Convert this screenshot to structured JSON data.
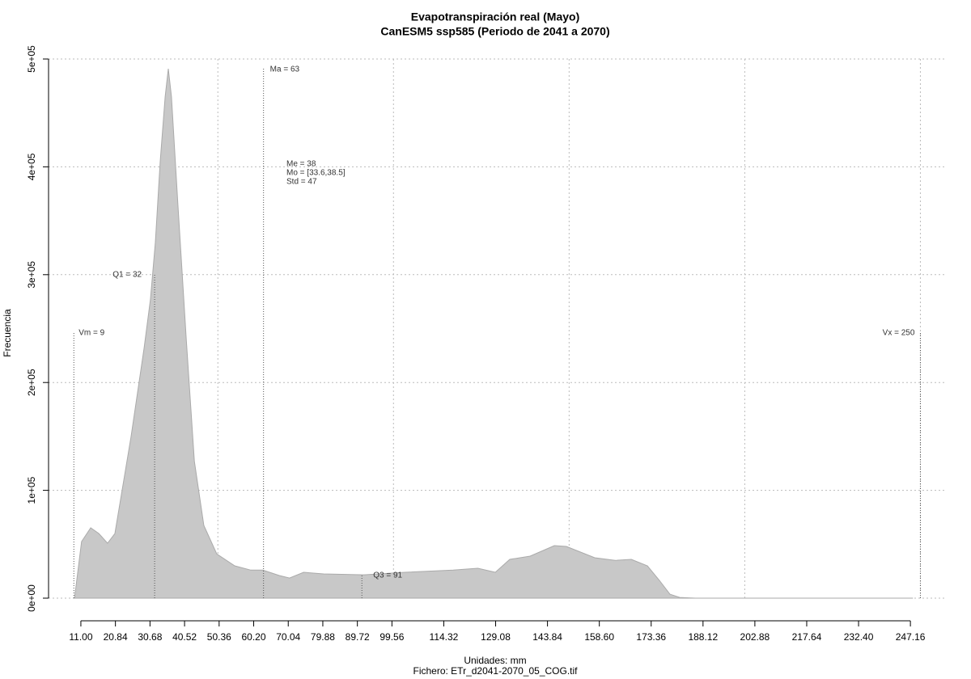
{
  "chart_data": {
    "type": "area",
    "title": "Evapotranspiración real (Mayo)",
    "subtitle": "CanESM5 ssp585 (Periodo de 2041 a 2070)",
    "x_label": "Unidades: mm",
    "caption": "Fichero: ETr_d2041-2070_05_COG.tif",
    "y_label": "Frecuencia",
    "color": "#c8c8c8",
    "x": [
      9.2,
      11.2,
      13.8,
      16.1,
      18.6,
      20.7,
      23.0,
      25.3,
      29.0,
      30.8,
      32.2,
      33.6,
      35.0,
      35.9,
      36.8,
      38.6,
      41.0,
      43.3,
      46.0,
      49.7,
      54.8,
      59.4,
      62.8,
      67.5,
      70.4,
      74.4,
      80.1,
      91.6,
      103.2,
      117.0,
      124.0,
      129.0,
      133.1,
      138.9,
      145.8,
      149.2,
      157.3,
      163.1,
      167.7,
      172.3,
      175.7,
      178.7,
      181.5,
      186.0,
      247.9
    ],
    "values": [
      0,
      52500,
      65200,
      60000,
      51000,
      60000,
      105000,
      150000,
      232000,
      277000,
      330000,
      405000,
      465000,
      491000,
      465000,
      367000,
      240000,
      127000,
      67500,
      41000,
      30000,
      26000,
      26000,
      21000,
      18700,
      24000,
      22500,
      21700,
      24000,
      26000,
      27700,
      24000,
      36000,
      39000,
      48700,
      48000,
      37500,
      35000,
      36000,
      30000,
      16500,
      3700,
      700,
      0,
      0
    ],
    "xlim": [
      1.8,
      257.5
    ],
    "ylim": [
      0,
      500000
    ],
    "xticks": [
      {
        "value": 11,
        "label": "11.00"
      },
      20.84,
      30.68,
      40.52,
      50.36,
      {
        "value": 60.2,
        "label": "60.20"
      },
      70.04,
      79.88,
      89.72,
      99.56,
      114.32,
      129.08,
      143.84,
      {
        "value": 158.6,
        "label": "158.60"
      },
      173.36,
      188.12,
      202.88,
      217.64,
      {
        "value": 232.4,
        "label": "232.40"
      },
      247.16
    ],
    "yticks": [
      {
        "value": 0,
        "label": "0e+00"
      },
      {
        "value": 100000,
        "label": "1e+05"
      },
      {
        "value": 200000,
        "label": "2e+05"
      },
      {
        "value": 300000,
        "label": "3e+05"
      },
      {
        "value": 400000,
        "label": "4e+05"
      },
      {
        "value": 500000,
        "label": "5e+05"
      }
    ],
    "xgrid": [
      50,
      100,
      150,
      200,
      250
    ],
    "grid": true,
    "markers": [
      {
        "text": "Vm = 9",
        "x": 9
      },
      {
        "text": "Q1 = 32",
        "x": 32
      },
      {
        "text": "Ma = 63",
        "x": 63
      },
      {
        "text": "Q3 = 91",
        "x": 91
      },
      {
        "text": "Vx = 250",
        "x": 250
      }
    ],
    "stats": [
      "Me = 38",
      "Mo = [33.6,38.5]",
      "Std = 47"
    ]
  }
}
